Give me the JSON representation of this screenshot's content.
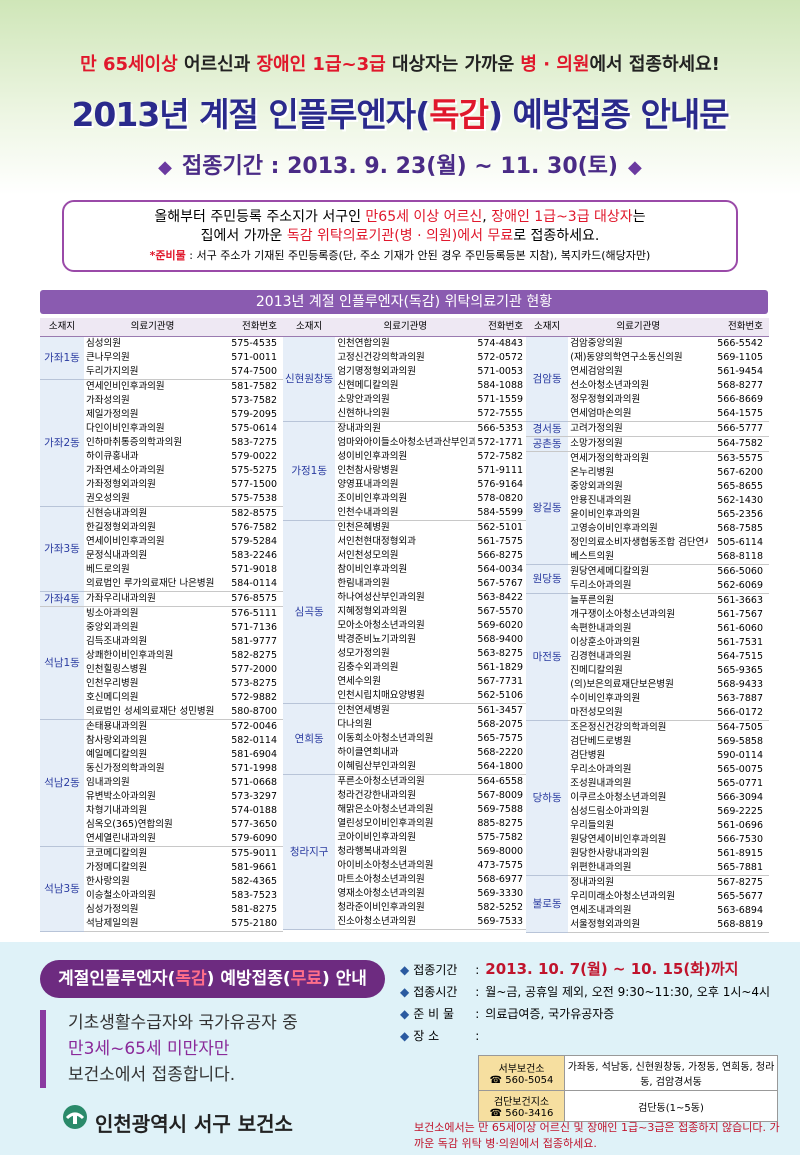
{
  "header": {
    "notice": [
      "만 65세이상",
      " 어르신과 ",
      "장애인 1급~3급",
      " 대상자는 가까운 ",
      "병 · 의원",
      "에서 접종하세요!"
    ],
    "title": [
      "2013년 계절 인플루엔자(",
      "독감",
      ") 예방접종 안내문"
    ],
    "period": "접종기간 : 2013. 9. 23(월) ~ 11. 30(토)"
  },
  "info": {
    "line1": [
      "올해부터 주민등록 주소지가 서구인 ",
      "만65세 이상 어르신",
      ", ",
      "장애인 1급~3급 대상자",
      "는"
    ],
    "line2": [
      "집에서 가까운 ",
      "독감 위탁의료기관(병 · 의원)에서 무료",
      "로 접종하세요."
    ],
    "supplies": [
      "*준비물",
      " : 서구 주소가 기재된 주민등록증(단, 주소 기재가 안된 경우 주민등록등본 지참), 복지카드(해당자만)"
    ]
  },
  "table": {
    "title": "2013년 계절 인플루엔자(독감) 위탁의료기관 현황",
    "headers": [
      "소재지",
      "의료기관명",
      "전화번호"
    ],
    "columns": [
      {
        "groups": [
          {
            "dong": "가좌1동",
            "rows": [
              [
                "심성의원",
                "575-4535"
              ],
              [
                "큰나무의원",
                "571-0011"
              ],
              [
                "두리가지의원",
                "574-7500"
              ]
            ]
          },
          {
            "dong": "가좌2동",
            "rows": [
              [
                "연세인비인후과의원",
                "581-7582"
              ],
              [
                "가좌성의원",
                "573-7582"
              ],
              [
                "제일가정의원",
                "579-2095"
              ],
              [
                "다인이비인후과의원",
                "575-0614"
              ],
              [
                "인하마취통증의학과의원",
                "583-7275"
              ],
              [
                "하이큐홍내과",
                "579-0022"
              ],
              [
                "가좌연세소아과의원",
                "575-5275"
              ],
              [
                "가좌정형외과의원",
                "577-1500"
              ],
              [
                "권오성의원",
                "575-7538"
              ]
            ]
          },
          {
            "dong": "가좌3동",
            "rows": [
              [
                "신현승내과의원",
                "582-8575"
              ],
              [
                "한길정형외과의원",
                "576-7582"
              ],
              [
                "연세이비인후과의원",
                "579-5284"
              ],
              [
                "문정식내과의원",
                "583-2246"
              ],
              [
                "베드로의원",
                "571-9018"
              ],
              [
                "의료법인 루가의료재단 나은병원",
                "584-0114"
              ]
            ]
          },
          {
            "dong": "가좌4동",
            "rows": [
              [
                "가좌우리내과의원",
                "576-8575"
              ]
            ]
          },
          {
            "dong": "석남1동",
            "rows": [
              [
                "빙소아과의원",
                "576-5111"
              ],
              [
                "중앙외과의원",
                "571-7136"
              ],
              [
                "김득조내과의원",
                "581-9777"
              ],
              [
                "상쾌한이비인후과의원",
                "582-8275"
              ],
              [
                "인천힐링스병원",
                "577-2000"
              ],
              [
                "인천우리병원",
                "573-8275"
              ],
              [
                "호신메디의원",
                "572-9882"
              ],
              [
                "의료법인 성세의료재단 성민병원",
                "580-8700"
              ]
            ]
          },
          {
            "dong": "석남2동",
            "rows": [
              [
                "손태용내과의원",
                "572-0046"
              ],
              [
                "참사랑외과의원",
                "582-0114"
              ],
              [
                "예일메디칼의원",
                "581-6904"
              ],
              [
                "동신가정의학과의원",
                "571-1998"
              ],
              [
                "임내과의원",
                "571-0668"
              ],
              [
                "유변박소아과의원",
                "573-3297"
              ],
              [
                "차형기내과의원",
                "574-0188"
              ],
              [
                "심옥오(365)연합의원",
                "577-3650"
              ],
              [
                "연세열린내과의원",
                "579-6090"
              ]
            ]
          },
          {
            "dong": "석남3동",
            "rows": [
              [
                "코코메디칼의원",
                "575-9011"
              ],
              [
                "가정메디칼의원",
                "581-9661"
              ],
              [
                "한사랑의원",
                "582-4365"
              ],
              [
                "이승철소아과의원",
                "583-7523"
              ],
              [
                "심성가정의원",
                "581-8275"
              ],
              [
                "석남제일의원",
                "575-2180"
              ]
            ]
          }
        ]
      },
      {
        "groups": [
          {
            "dong": "신현원창동",
            "rows": [
              [
                "인천연합의원",
                "574-4843"
              ],
              [
                "고정신건강의학과의원",
                "572-0572"
              ],
              [
                "엄기명정형외과의원",
                "571-0053"
              ],
              [
                "신현메디칼의원",
                "584-1088"
              ],
              [
                "소망안과의원",
                "571-1559"
              ],
              [
                "신현하나의원",
                "572-7555"
              ]
            ]
          },
          {
            "dong": "가정1동",
            "rows": [
              [
                "장내과의원",
                "566-5353"
              ],
              [
                "엄마와아이들소아청소년과산부인과의원",
                "572-1771"
              ],
              [
                "성이비인후과의원",
                "572-7582"
              ],
              [
                "인천참사랑병원",
                "571-9111"
              ],
              [
                "양영표내과의원",
                "576-9164"
              ],
              [
                "조이비인후과의원",
                "578-0820"
              ],
              [
                "인천수내과의원",
                "584-5599"
              ]
            ]
          },
          {
            "dong": "심곡동",
            "rows": [
              [
                "인천은혜병원",
                "562-5101"
              ],
              [
                "서인천현대정형외과",
                "561-7575"
              ],
              [
                "서인천성모의원",
                "566-8275"
              ],
              [
                "참이비인후과의원",
                "564-0034"
              ],
              [
                "한림내과의원",
                "567-5767"
              ],
              [
                "하나여성산부인과의원",
                "563-8422"
              ],
              [
                "지혜정형외과의원",
                "567-5570"
              ],
              [
                "모아소아청소년과의원",
                "569-6020"
              ],
              [
                "박경준비뇨기과의원",
                "568-9400"
              ],
              [
                "성모가정의원",
                "563-8275"
              ],
              [
                "김충수외과의원",
                "561-1829"
              ],
              [
                "연세수의원",
                "567-7731"
              ],
              [
                "인천시립치매요양병원",
                "562-5106"
              ]
            ]
          },
          {
            "dong": "연희동",
            "rows": [
              [
                "인천연세병원",
                "561-3457"
              ],
              [
                "다나의원",
                "568-2075"
              ],
              [
                "이동희소아청소년과의원",
                "565-7575"
              ],
              [
                "하이클연희내과",
                "568-2220"
              ],
              [
                "이혜림산부인과의원",
                "564-1800"
              ]
            ]
          },
          {
            "dong": "청라지구",
            "rows": [
              [
                "푸른소아청소년과의원",
                "564-6558"
              ],
              [
                "청라건강한내과의원",
                "567-8009"
              ],
              [
                "해맑은소아청소년과의원",
                "569-7588"
              ],
              [
                "열린성모이비인후과의원",
                "885-8275"
              ],
              [
                "코아이비인후과의원",
                "575-7582"
              ],
              [
                "청라행복내과의원",
                "569-8000"
              ],
              [
                "아이비소아청소년과의원",
                "473-7575"
              ],
              [
                "마트소아청소년과의원",
                "568-6977"
              ],
              [
                "영재소아청소년과의원",
                "569-3330"
              ],
              [
                "청라준이비인후과의원",
                "582-5252"
              ],
              [
                "진소아청소년과의원",
                "569-7533"
              ]
            ]
          }
        ]
      },
      {
        "groups": [
          {
            "dong": "검암동",
            "rows": [
              [
                "검암중앙의원",
                "566-5542"
              ],
              [
                "(재)동양의학연구소동신의원",
                "569-1105"
              ],
              [
                "연세검암의원",
                "561-9454"
              ],
              [
                "선소아청소년과의원",
                "568-8277"
              ],
              [
                "정우정형외과의원",
                "566-8669"
              ],
              [
                "연세엄마손의원",
                "564-1575"
              ]
            ]
          },
          {
            "dong": "경서동",
            "rows": [
              [
                "고려가정의원",
                "566-5777"
              ]
            ]
          },
          {
            "dong": "공촌동",
            "rows": [
              [
                "소망가정의원",
                "564-7582"
              ]
            ]
          },
          {
            "dong": "왕길동",
            "rows": [
              [
                "연세가정의학과의원",
                "563-5575"
              ],
              [
                "온누리병원",
                "567-6200"
              ],
              [
                "중앙외과의원",
                "565-8655"
              ],
              [
                "안용진내과의원",
                "562-1430"
              ],
              [
                "윤이비인후과의원",
                "565-2356"
              ],
              [
                "고영승이비인후과의원",
                "568-7585"
              ],
              [
                "정인의료소비자생협동조합 검단연세요양병원",
                "505-6114"
              ],
              [
                "베스트의원",
                "568-8118"
              ]
            ]
          },
          {
            "dong": "원당동",
            "rows": [
              [
                "원당연세메디칼의원",
                "566-5060"
              ],
              [
                "두리소아과의원",
                "562-6069"
              ]
            ]
          },
          {
            "dong": "마전동",
            "rows": [
              [
                "늘푸른의원",
                "561-3663"
              ],
              [
                "개구쟁이소아청소년과의원",
                "561-7567"
              ],
              [
                "속편한내과의원",
                "561-6060"
              ],
              [
                "이상훈소아과의원",
                "561-7531"
              ],
              [
                "김경현내과의원",
                "564-7515"
              ],
              [
                "진메디칼의원",
                "565-9365"
              ],
              [
                "(의)보은의료재단보은병원",
                "568-9433"
              ],
              [
                "수이비인후과의원",
                "563-7887"
              ],
              [
                "마전성모의원",
                "566-0172"
              ]
            ]
          },
          {
            "dong": "당하동",
            "rows": [
              [
                "조은정신건강의학과의원",
                "564-7505"
              ],
              [
                "검단베드로병원",
                "569-5858"
              ],
              [
                "검단병원",
                "590-0114"
              ],
              [
                "우리소아과의원",
                "565-0075"
              ],
              [
                "조성원내과의원",
                "565-0771"
              ],
              [
                "이쿠르소아청소년과의원",
                "566-3094"
              ],
              [
                "심성드림소아과의원",
                "569-2225"
              ],
              [
                "우리들의원",
                "561-0696"
              ],
              [
                "원당연세이비인후과의원",
                "566-7530"
              ],
              [
                "원당한사랑내과의원",
                "561-8915"
              ],
              [
                "위편한내과의원",
                "565-7881"
              ]
            ]
          },
          {
            "dong": "불로동",
            "rows": [
              [
                "정내과의원",
                "567-8275"
              ],
              [
                "우리미래소아청소년과의원",
                "565-5677"
              ],
              [
                "연세조내과의원",
                "563-6894"
              ],
              [
                "서울정형외과의원",
                "568-8819"
              ]
            ]
          }
        ]
      }
    ]
  },
  "free": {
    "title": [
      "계절인플루엔자(",
      "독감",
      ") 예방접종(",
      "무료",
      ") 안내"
    ],
    "eligibility": [
      "기초생활수급자와 국가유공자 중",
      "만3세~65세 미만자만",
      "보건소에서 접종합니다."
    ],
    "organization": "인천광역시 서구 보건소",
    "details": [
      {
        "label": "접종기간",
        "value": "2013. 10. 7(월) ~ 10. 15(화)까지"
      },
      {
        "label": "접종시간",
        "value": "월~금, 공휴일 제외, 오전 9:30~11:30, 오후 1시~4시"
      },
      {
        "label": "준 비 물",
        "value": "의료급여증, 국가유공자증"
      },
      {
        "label": "장 소",
        "value": ""
      }
    ],
    "places": [
      {
        "name": "서부보건소",
        "phone": "☎ 560-5054",
        "areas": "가좌동, 석남동, 신현원창동, 가정동, 연희동, 청라동, 검암경서동"
      },
      {
        "name": "검단보건지소",
        "phone": "☎ 560-3416",
        "areas": "검단동(1~5동)"
      }
    ],
    "note": "보건소에서는 만 65세이상 어르신 및 장애인 1급~3급은 접종하지 않습니다. 가까운 독감 위탁 병·의원에서 접종하세요."
  }
}
